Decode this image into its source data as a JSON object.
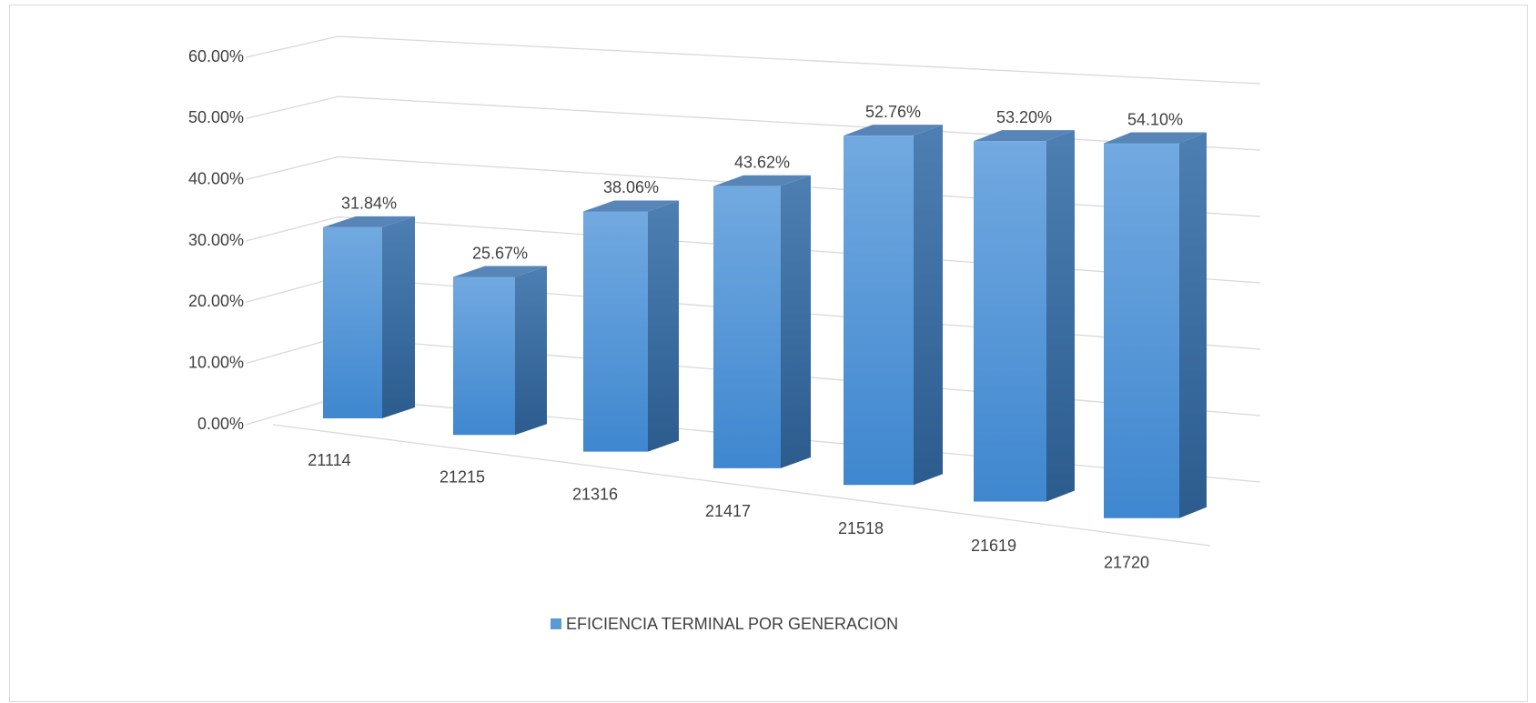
{
  "chart_data": {
    "type": "bar3d",
    "categories": [
      "21114",
      "21215",
      "21316",
      "21417",
      "21518",
      "21619",
      "21720"
    ],
    "series": [
      {
        "name": "EFICIENCIA TERMINAL POR GENERACION",
        "color": "#5b9bd5",
        "values": [
          31.84,
          25.67,
          38.06,
          43.62,
          52.76,
          53.2,
          54.1
        ],
        "value_labels": [
          "31.84%",
          "25.67%",
          "38.06%",
          "43.62%",
          "52.76%",
          "53.20%",
          "54.10%"
        ]
      }
    ],
    "ylim": [
      0,
      60
    ],
    "yticks": [
      {
        "value": 0,
        "label": "0.00%"
      },
      {
        "value": 10,
        "label": "10.00%"
      },
      {
        "value": 20,
        "label": "20.00%"
      },
      {
        "value": 30,
        "label": "30.00%"
      },
      {
        "value": 40,
        "label": "40.00%"
      },
      {
        "value": 50,
        "label": "50.00%"
      },
      {
        "value": 60,
        "label": "60.00%"
      }
    ],
    "grid": true,
    "legend": "bottom"
  }
}
